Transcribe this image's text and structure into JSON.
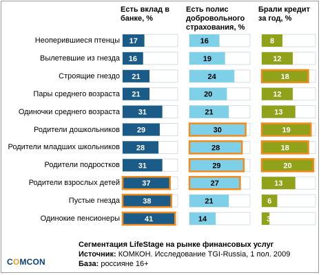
{
  "columns": [
    {
      "title": "Есть вклад в\nбанке, %"
    },
    {
      "title": "Есть полис\nдобровольного\nстрахования, %"
    },
    {
      "title": "Брали кредит\nза год, %"
    }
  ],
  "colors": {
    "series1_fill": "#1a5b87",
    "series2_fill": "#7ed0e8",
    "series3_fill": "#8fa21a",
    "track_stroke": "#1f5f88",
    "highlight": "#f28a1c",
    "label_dark": "#ffffff",
    "label_light": "#000000"
  },
  "chart_data": {
    "type": "bar",
    "categories": [
      "Неоперившиеся птенцы",
      "Вылетевшие из гнезда",
      "Строящие гнездо",
      "Пары среднего возраста",
      "Одиночки среднего возраста",
      "Родители дошкольников",
      "Родители младших школьников",
      "Родители подростков",
      "Родители взрослых детей",
      "Пустые гнезда",
      "Одинокие пенсионеры"
    ],
    "series": [
      {
        "name": "Есть вклад в банке, %",
        "values": [
          17,
          16,
          21,
          21,
          31,
          29,
          28,
          31,
          37,
          38,
          41
        ],
        "highlighted": [
          false,
          false,
          false,
          false,
          false,
          false,
          false,
          false,
          true,
          true,
          true
        ]
      },
      {
        "name": "Есть полис добровольного страхования, %",
        "values": [
          16,
          19,
          24,
          20,
          21,
          30,
          28,
          29,
          27,
          21,
          14
        ],
        "highlighted": [
          false,
          false,
          false,
          false,
          false,
          true,
          true,
          true,
          true,
          false,
          false
        ]
      },
      {
        "name": "Брали кредит за год, %",
        "values": [
          8,
          12,
          18,
          12,
          13,
          19,
          18,
          20,
          13,
          6,
          3
        ],
        "highlighted": [
          false,
          false,
          true,
          false,
          false,
          true,
          true,
          true,
          false,
          false,
          false
        ]
      }
    ]
  },
  "footer": {
    "line1": "Сегментация LifeStage на рынке финансовых услуг",
    "source_label": "Источник:",
    "source_text": " КОМКОН. Исследование TGI-Russia, 1 пол. 2009",
    "base_label": "База:",
    "base_text": " россияне 16+"
  },
  "logo": {
    "prefix": "C",
    "o": "O",
    "suffix": "MCON"
  }
}
